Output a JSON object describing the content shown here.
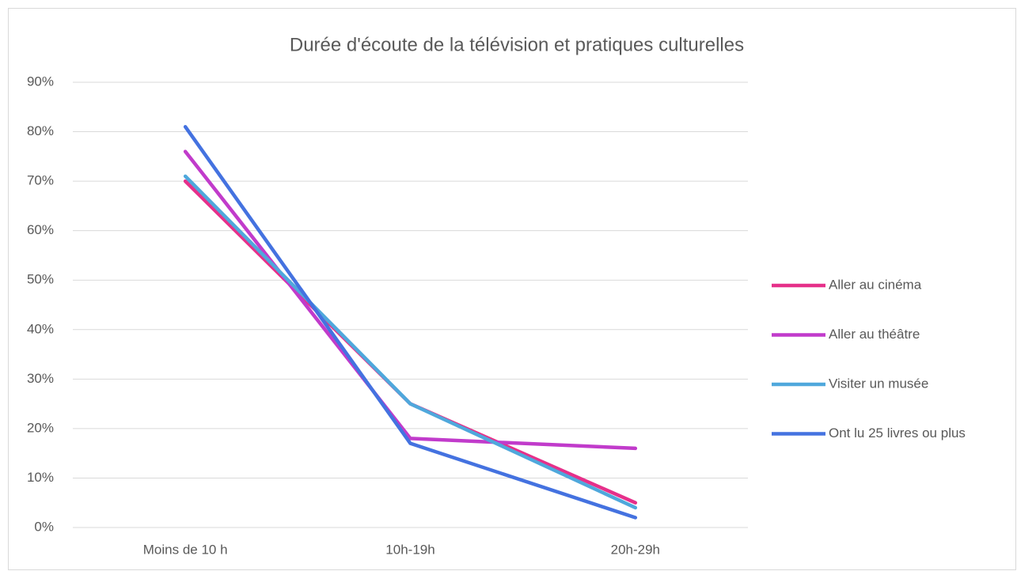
{
  "chart_data": {
    "type": "line",
    "title": "Durée d'écoute de la télévision et pratiques culturelles",
    "categories": [
      "Moins de 10 h",
      "10h-19h",
      "20h-29h"
    ],
    "series": [
      {
        "name": "Aller au cinéma",
        "color": "#e6308a",
        "values": [
          70,
          25,
          5
        ]
      },
      {
        "name": "Aller au théâtre",
        "color": "#c13bcb",
        "values": [
          76,
          18,
          16
        ]
      },
      {
        "name": "Visiter un musée",
        "color": "#4fa8dc",
        "values": [
          71,
          25,
          4
        ]
      },
      {
        "name": "Ont lu 25 livres ou plus",
        "color": "#4472e0",
        "values": [
          81,
          17,
          2
        ]
      }
    ],
    "ylim": [
      0,
      90
    ],
    "yticks": [
      {
        "value": 0,
        "label": "0%"
      },
      {
        "value": 10,
        "label": "10%"
      },
      {
        "value": 20,
        "label": "20%"
      },
      {
        "value": 30,
        "label": "30%"
      },
      {
        "value": 40,
        "label": "40%"
      },
      {
        "value": 50,
        "label": "50%"
      },
      {
        "value": 60,
        "label": "60%"
      },
      {
        "value": 70,
        "label": "70%"
      },
      {
        "value": 80,
        "label": "80%"
      },
      {
        "value": 90,
        "label": "90%"
      }
    ],
    "grid": true,
    "legend": "right"
  }
}
